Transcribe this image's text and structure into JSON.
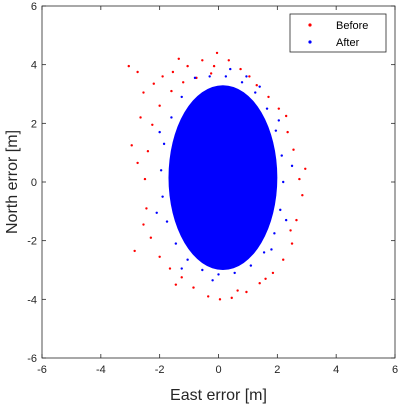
{
  "chart_data": {
    "type": "scatter",
    "title": "",
    "xlabel": "East error [m]",
    "ylabel": "North error [m]",
    "xlim": [
      -6,
      6
    ],
    "ylim": [
      -6,
      6
    ],
    "xticks": [
      "-6",
      "-4",
      "-2",
      "0",
      "2",
      "4",
      "6"
    ],
    "yticks": [
      "-6",
      "-4",
      "-2",
      "0",
      "2",
      "4",
      "6"
    ],
    "grid": false,
    "legend_position": "top-right",
    "series": [
      {
        "name": "Before",
        "color": "#ff0000",
        "marker": "dot",
        "points": [
          [
            -3.05,
            3.95
          ],
          [
            -2.75,
            3.75
          ],
          [
            -2.55,
            3.05
          ],
          [
            -2.95,
            1.25
          ],
          [
            -2.75,
            0.65
          ],
          [
            -2.85,
            -2.35
          ],
          [
            -2.55,
            -1.45
          ],
          [
            -2.2,
            3.35
          ],
          [
            -1.9,
            3.6
          ],
          [
            -1.55,
            3.75
          ],
          [
            -1.35,
            4.2
          ],
          [
            -1.05,
            3.95
          ],
          [
            -0.55,
            4.15
          ],
          [
            -0.25,
            3.7
          ],
          [
            -0.05,
            4.4
          ],
          [
            0.35,
            4.15
          ],
          [
            0.75,
            3.85
          ],
          [
            1.05,
            3.6
          ],
          [
            1.3,
            3.3
          ],
          [
            1.7,
            2.9
          ],
          [
            2.05,
            2.5
          ],
          [
            2.35,
            1.7
          ],
          [
            2.55,
            1.1
          ],
          [
            2.75,
            0.1
          ],
          [
            2.85,
            -0.45
          ],
          [
            2.65,
            -1.3
          ],
          [
            2.5,
            -2.1
          ],
          [
            2.2,
            -2.65
          ],
          [
            1.85,
            -3.1
          ],
          [
            1.4,
            -3.45
          ],
          [
            0.95,
            -3.75
          ],
          [
            0.45,
            -3.95
          ],
          [
            0.05,
            -4.0
          ],
          [
            -0.35,
            -3.9
          ],
          [
            -0.85,
            -3.6
          ],
          [
            -1.25,
            -3.25
          ],
          [
            -1.65,
            -2.95
          ],
          [
            -2.0,
            -2.55
          ],
          [
            -2.3,
            -1.9
          ],
          [
            -2.45,
            -0.9
          ],
          [
            -2.5,
            0.1
          ],
          [
            -2.4,
            1.05
          ],
          [
            -2.25,
            1.95
          ],
          [
            -2.0,
            2.6
          ],
          [
            -1.6,
            3.1
          ],
          [
            -1.2,
            3.4
          ],
          [
            -0.75,
            3.55
          ],
          [
            2.95,
            0.45
          ],
          [
            2.3,
            2.25
          ],
          [
            -2.65,
            2.2
          ],
          [
            1.6,
            -3.3
          ],
          [
            -1.45,
            -3.5
          ],
          [
            0.65,
            -3.7
          ],
          [
            -0.15,
            3.95
          ],
          [
            2.45,
            -1.65
          ]
        ]
      },
      {
        "name": "After",
        "color": "#0000ff",
        "marker": "dot",
        "points": [
          [
            -0.8,
            3.55
          ],
          [
            -0.3,
            3.6
          ],
          [
            0.25,
            3.6
          ],
          [
            0.8,
            3.4
          ],
          [
            1.25,
            3.05
          ],
          [
            1.65,
            2.5
          ],
          [
            1.95,
            1.75
          ],
          [
            2.15,
            0.9
          ],
          [
            2.2,
            0.0
          ],
          [
            2.1,
            -0.95
          ],
          [
            1.9,
            -1.75
          ],
          [
            1.55,
            -2.4
          ],
          [
            1.1,
            -2.85
          ],
          [
            0.55,
            -3.1
          ],
          [
            0.0,
            -3.15
          ],
          [
            -0.55,
            -3.0
          ],
          [
            -1.05,
            -2.65
          ],
          [
            -1.45,
            -2.1
          ],
          [
            -1.75,
            -1.35
          ],
          [
            -1.9,
            -0.5
          ],
          [
            -1.95,
            0.4
          ],
          [
            -1.85,
            1.3
          ],
          [
            -1.6,
            2.2
          ],
          [
            -1.25,
            2.9
          ],
          [
            2.5,
            0.55
          ],
          [
            2.3,
            -1.3
          ],
          [
            -2.0,
            1.7
          ],
          [
            0.4,
            3.85
          ],
          [
            -0.2,
            -3.35
          ],
          [
            1.4,
            3.25
          ],
          [
            -1.25,
            -2.95
          ],
          [
            2.05,
            2.1
          ],
          [
            -2.1,
            -1.05
          ],
          [
            1.8,
            -2.3
          ],
          [
            0.95,
            3.6
          ]
        ]
      }
    ]
  }
}
